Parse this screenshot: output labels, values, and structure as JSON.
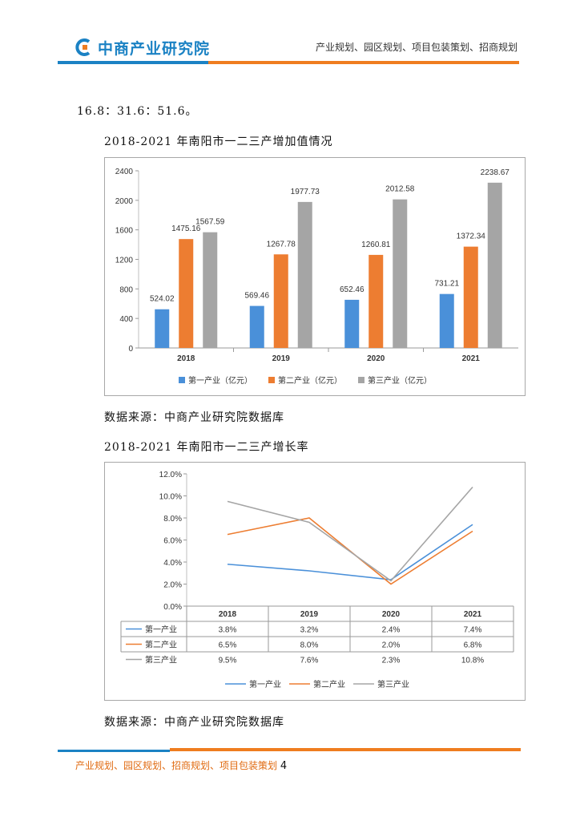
{
  "header": {
    "logo_text": "中商产业研究院",
    "tagline": "产业规划、园区规划、项目包装策划、招商规划"
  },
  "body": {
    "intro_line": "16.8：31.6：51.6。",
    "chart1_caption": "2018-2021 年南阳市一二三产增加值情况",
    "source1": "数据来源：中商产业研究院数据库",
    "chart2_caption": "2018-2021 年南阳市一二三产增长率",
    "source2": "数据来源：中商产业研究院数据库"
  },
  "chart_data": [
    {
      "type": "bar",
      "categories": [
        "2018",
        "2019",
        "2020",
        "2021"
      ],
      "series": [
        {
          "name": "第一产业（亿元）",
          "values": [
            524.02,
            569.46,
            652.46,
            731.21
          ],
          "labels": [
            "524.02",
            "569.46",
            "652.46",
            "731.21"
          ]
        },
        {
          "name": "第二产业（亿元）",
          "values": [
            1475.16,
            1267.78,
            1260.81,
            1372.34
          ],
          "labels": [
            "1475.16",
            "1267.78",
            "1260.81",
            "1372.34"
          ]
        },
        {
          "name": "第三产业（亿元）",
          "values": [
            1567.59,
            1977.73,
            2012.58,
            2238.67
          ],
          "labels": [
            "1567.59",
            "1977.73",
            "2012.58",
            "2238.67"
          ]
        }
      ],
      "ylim": [
        0,
        2400
      ],
      "yticks": [
        "0",
        "400",
        "800",
        "1200",
        "1600",
        "2000",
        "2400"
      ],
      "legend": "bottom",
      "colors": [
        "#4a90d9",
        "#ed7d31",
        "#a5a5a5"
      ]
    },
    {
      "type": "line",
      "categories": [
        "2018",
        "2019",
        "2020",
        "2021"
      ],
      "series": [
        {
          "name": "第一产业",
          "values": [
            3.8,
            3.2,
            2.4,
            7.4
          ],
          "labels": [
            "3.8%",
            "3.2%",
            "2.4%",
            "7.4%"
          ]
        },
        {
          "name": "第二产业",
          "values": [
            6.5,
            8.0,
            2.0,
            6.8
          ],
          "labels": [
            "6.5%",
            "8.0%",
            "2.0%",
            "6.8%"
          ]
        },
        {
          "name": "第三产业",
          "values": [
            9.5,
            7.6,
            2.3,
            10.8
          ],
          "labels": [
            "9.5%",
            "7.6%",
            "2.3%",
            "10.8%"
          ]
        }
      ],
      "ylim": [
        0,
        12
      ],
      "yticks": [
        "0.0%",
        "2.0%",
        "4.0%",
        "6.0%",
        "8.0%",
        "10.0%",
        "12.0%"
      ],
      "data_table": true,
      "legend": "bottom",
      "colors": [
        "#4a90d9",
        "#ed7d31",
        "#a5a5a5"
      ]
    }
  ],
  "footer": {
    "text": "产业规划、园区规划、招商规划、项目包装策划",
    "page_number": "4"
  }
}
